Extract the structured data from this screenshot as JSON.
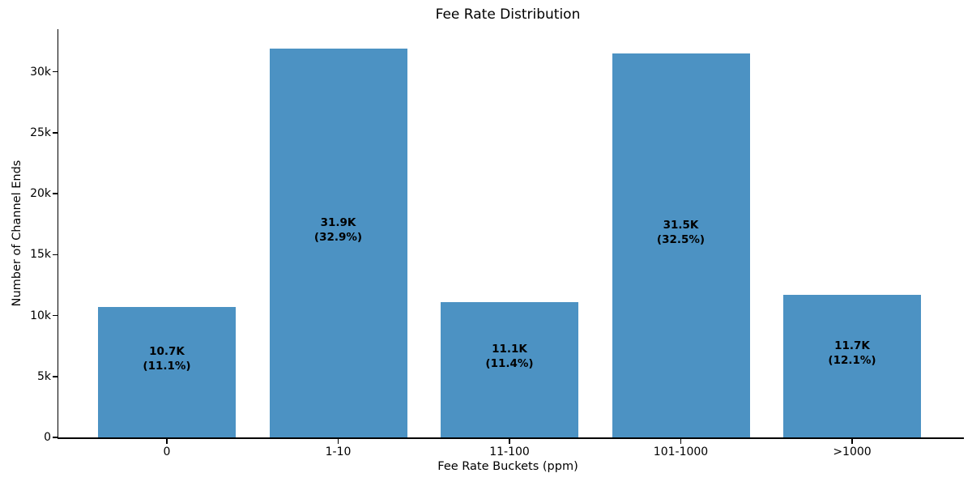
{
  "chart_data": {
    "type": "bar",
    "title": "Fee Rate Distribution",
    "xlabel": "Fee Rate Buckets (ppm)",
    "ylabel": "Number of Channel Ends",
    "categories": [
      "0",
      "1-10",
      "11-100",
      "101-1000",
      ">1000"
    ],
    "values": [
      10700,
      31900,
      11100,
      31500,
      11700
    ],
    "value_labels": [
      "10.7K",
      "31.9K",
      "11.1K",
      "31.5K",
      "11.7K"
    ],
    "pct_labels": [
      "(11.1%)",
      "(32.9%)",
      "(11.4%)",
      "(32.5%)",
      "(12.1%)"
    ],
    "percentages": [
      11.1,
      32.9,
      11.4,
      32.5,
      12.1
    ],
    "ylim": [
      0,
      33495
    ],
    "ytick_values": [
      0,
      5000,
      10000,
      15000,
      20000,
      25000,
      30000
    ],
    "ytick_labels": [
      "0",
      "5k",
      "10k",
      "15k",
      "20k",
      "25k",
      "30k"
    ],
    "bar_color": "#4c92c3",
    "text_color": "#000000",
    "grid": false,
    "legend": "none"
  }
}
